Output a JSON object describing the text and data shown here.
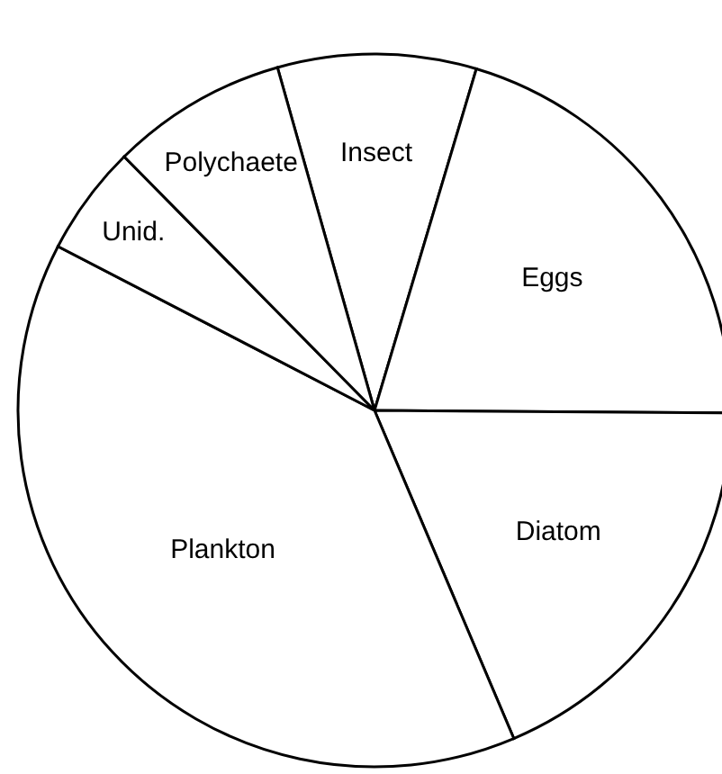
{
  "chart_data": {
    "type": "pie",
    "categories": [
      "Insect",
      "Eggs",
      "Diatom",
      "Plankton",
      "Unid.",
      "Polychaete"
    ],
    "values": [
      9,
      20.5,
      18.5,
      39,
      5,
      8
    ],
    "colors": [
      "#ffffff",
      "#ffffff",
      "#ffffff",
      "#ffffff",
      "#ffffff",
      "#ffffff"
    ]
  }
}
